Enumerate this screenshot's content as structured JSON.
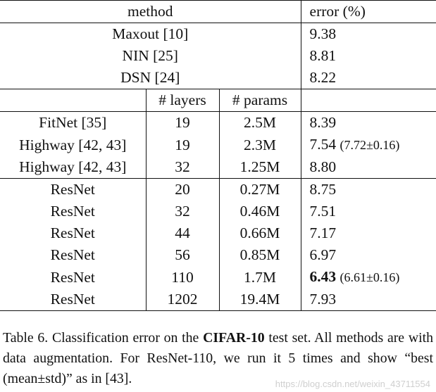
{
  "table": {
    "header": {
      "method": "method",
      "error": "error (%)"
    },
    "subheader": {
      "layers": "# layers",
      "params": "# params"
    },
    "group1": [
      {
        "method": "Maxout [10]",
        "error": "9.38"
      },
      {
        "method": "NIN [25]",
        "error": "8.81"
      },
      {
        "method": "DSN [24]",
        "error": "8.22"
      }
    ],
    "group2": [
      {
        "method": "FitNet [35]",
        "layers": "19",
        "params": "2.5M",
        "error": "8.39",
        "note": ""
      },
      {
        "method": "Highway [42, 43]",
        "layers": "19",
        "params": "2.3M",
        "error": "7.54",
        "note": "(7.72±0.16)"
      },
      {
        "method": "Highway [42, 43]",
        "layers": "32",
        "params": "1.25M",
        "error": "8.80",
        "note": ""
      }
    ],
    "group3": [
      {
        "method": "ResNet",
        "layers": "20",
        "params": "0.27M",
        "error": "8.75",
        "note": ""
      },
      {
        "method": "ResNet",
        "layers": "32",
        "params": "0.46M",
        "error": "7.51",
        "note": ""
      },
      {
        "method": "ResNet",
        "layers": "44",
        "params": "0.66M",
        "error": "7.17",
        "note": ""
      },
      {
        "method": "ResNet",
        "layers": "56",
        "params": "0.85M",
        "error": "6.97",
        "note": ""
      },
      {
        "method": "ResNet",
        "layers": "110",
        "params": "1.7M",
        "error": "6.43",
        "note": "(6.61±0.16)",
        "bold": true
      },
      {
        "method": "ResNet",
        "layers": "1202",
        "params": "19.4M",
        "error": "7.93",
        "note": ""
      }
    ]
  },
  "caption": {
    "part1": "Table 6. Classification error on the ",
    "bold": "CIFAR-10",
    "part2": " test set. All methods are with data augmentation. For ResNet-110, we run it 5 times and show “best (mean±std)” as in [43]."
  },
  "watermark": "https://blog.csdn.net/weixin_43711554"
}
